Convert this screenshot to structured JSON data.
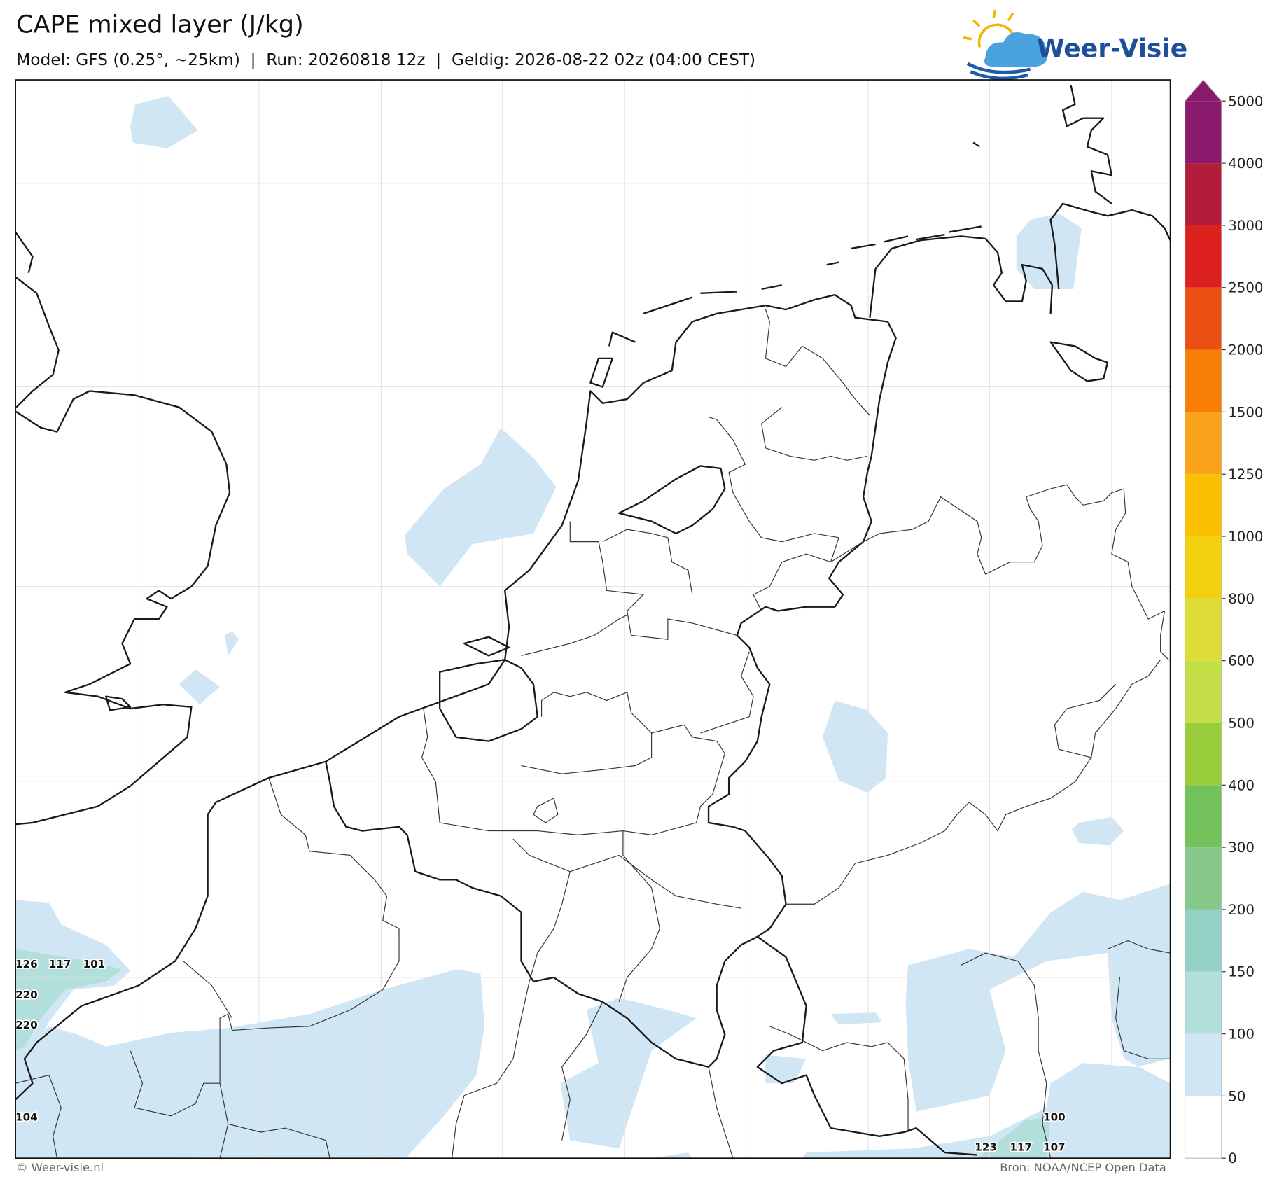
{
  "header": {
    "title": "CAPE mixed layer (J/kg)",
    "subtitle": "Model: GFS (0.25°, ~25km)  |  Run: 20260818 12z  |  Geldig: 2026-08-22 02z (04:00 CEST)"
  },
  "logo": {
    "text": "Weer-Visie"
  },
  "colorbar": {
    "ticks": [
      0,
      50,
      100,
      150,
      200,
      300,
      400,
      500,
      600,
      800,
      1000,
      1250,
      1500,
      2000,
      2500,
      3000,
      4000,
      5000
    ],
    "colors": [
      "#ffffff",
      "#d0e6f5",
      "#b2dfdb",
      "#93d2c4",
      "#86c98a",
      "#73c15a",
      "#9acd3c",
      "#c4de48",
      "#dedd38",
      "#f2d00f",
      "#fbc100",
      "#fba31a",
      "#f97e06",
      "#ec4f12",
      "#dc201e",
      "#b11d3b",
      "#8a1a6b"
    ]
  },
  "map": {
    "labels": [
      126,
      117,
      101,
      220,
      220,
      104,
      100,
      123,
      117,
      107
    ]
  },
  "footer": {
    "left": "© Weer-visie.nl",
    "right": "Bron: NOAA/NCEP Open Data"
  }
}
